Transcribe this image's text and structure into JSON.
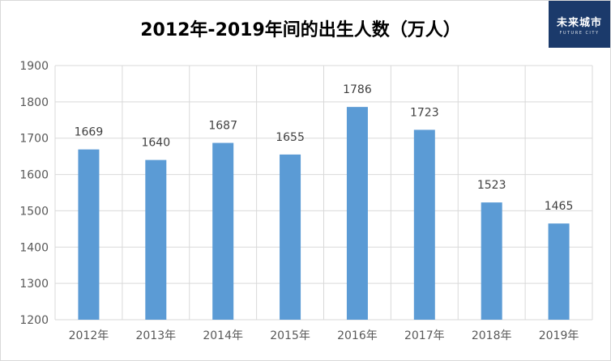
{
  "title": "2012年-2019年间的出生人数（万人）",
  "logo": {
    "text": "未来城市",
    "subtext": "FUTURE CITY"
  },
  "colors": {
    "bar": "#5b9bd5",
    "grid": "#d9d9d9",
    "axis_text": "#595959",
    "label_text": "#404040"
  },
  "chart_data": {
    "type": "bar",
    "title": "2012年-2019年间的出生人数（万人）",
    "categories": [
      "2012年",
      "2013年",
      "2014年",
      "2015年",
      "2016年",
      "2017年",
      "2018年",
      "2019年"
    ],
    "values": [
      1669,
      1640,
      1687,
      1655,
      1786,
      1723,
      1523,
      1465
    ],
    "ylim": [
      1200,
      1900
    ],
    "yticks": [
      1200,
      1300,
      1400,
      1500,
      1600,
      1700,
      1800,
      1900
    ],
    "grid": true,
    "data_labels": true,
    "xlabel": "",
    "ylabel": ""
  }
}
